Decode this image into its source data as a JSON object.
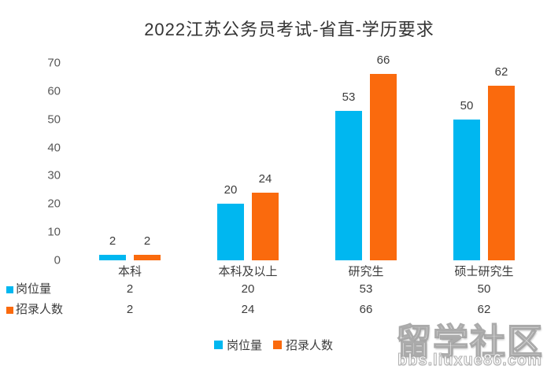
{
  "chart_data": {
    "type": "bar",
    "title": "2022江苏公务员考试-省直-学历要求",
    "categories": [
      "本科",
      "本科及以上",
      "研究生",
      "硕士研究生"
    ],
    "series": [
      {
        "name": "岗位量",
        "color": "#00b7f0",
        "values": [
          2,
          20,
          53,
          50
        ]
      },
      {
        "name": "招录人数",
        "color": "#fa6a0d",
        "values": [
          2,
          24,
          66,
          62
        ]
      }
    ],
    "ylim": [
      0,
      70
    ],
    "yticks": [
      0,
      10,
      20,
      30,
      40,
      50,
      60,
      70
    ],
    "grid": false,
    "data_labels": true,
    "data_table": true,
    "legend_position": "bottom"
  },
  "watermark": {
    "line1": "留学社区",
    "line2": "bbs.liuxue86.com"
  }
}
